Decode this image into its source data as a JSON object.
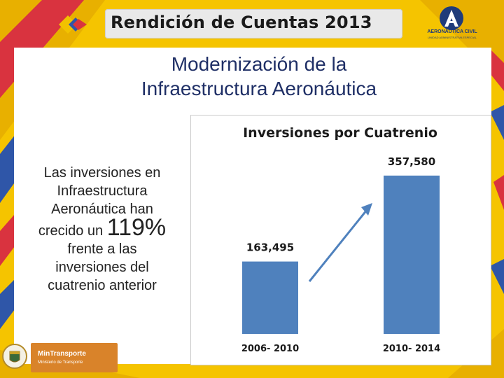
{
  "header": {
    "title": "Rendición de Cuentas 2013",
    "right_logo_name": "AERONÁUTICA CIVIL",
    "right_logo_sub": "UNIDAD ADMINISTRATIVA ESPECIAL"
  },
  "slide": {
    "title_line1": "Modernización de la",
    "title_line2": "Infraestructura Aeronáutica",
    "text_line1": "Las inversiones en",
    "text_line2": "Infraestructura",
    "text_line3": "Aeronáutica han",
    "text_line4_prefix": "crecido un",
    "percentage": "119%",
    "text_line5": "frente a las",
    "text_line6": "inversiones del",
    "text_line7": "cuatrenio anterior"
  },
  "footer": {
    "ministry_name": "MinTransporte",
    "ministry_sub": "Ministerio de Transporte"
  },
  "colors": {
    "bar": "#4f81bd",
    "arrow": "#4f81bd",
    "title": "#1f2f66"
  },
  "chart_data": {
    "type": "bar",
    "title": "Inversiones por Cuatrenio",
    "categories": [
      "2006- 2010",
      "2010- 2014"
    ],
    "values": [
      163495,
      357580
    ],
    "value_labels": [
      "163,495",
      "357,580"
    ],
    "xlabel": "",
    "ylabel": "",
    "ylim": [
      0,
      400000
    ],
    "grid": false,
    "legend": "none"
  }
}
